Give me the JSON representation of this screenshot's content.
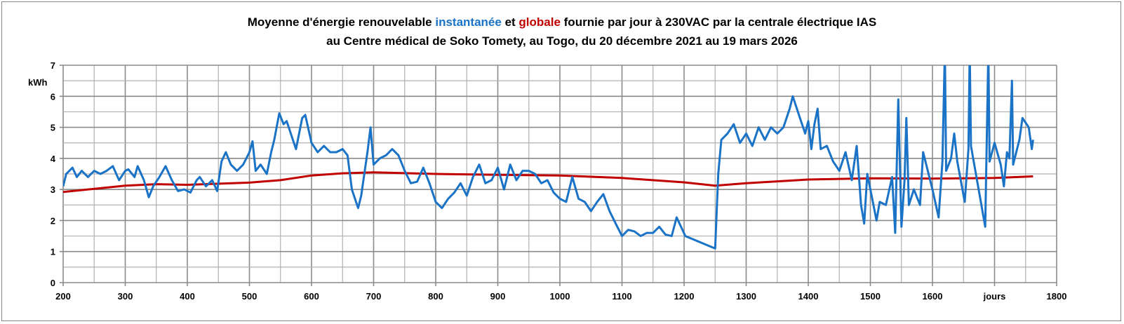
{
  "chart_data": {
    "type": "line",
    "title_parts": {
      "line1_a": "Moyenne d'énergie renouvelable ",
      "line1_b": "instantanée",
      "line1_c": " et ",
      "line1_d": "globale",
      "line1_e": " fournie par jour à 230VAC par la centrale électrique IAS",
      "line2": "au Centre médical de Soko Tomety, au Togo, du 20 décembre 2021 au 19 mars 2026"
    },
    "xlabel": "jours",
    "ylabel": "kWh",
    "xlim": [
      200,
      1800
    ],
    "ylim": [
      0,
      7
    ],
    "x_ticks": [
      "200",
      "300",
      "400",
      "500",
      "600",
      "700",
      "800",
      "900",
      "1000",
      "1100",
      "1200",
      "1300",
      "1400",
      "1500",
      "1600",
      "jours",
      "1800"
    ],
    "y_ticks": [
      "0",
      "1",
      "2",
      "3",
      "4",
      "5",
      "6",
      "7"
    ],
    "grid": true,
    "colors": {
      "instantanee": "#1a73c6",
      "globale": "#c00000"
    },
    "series": [
      {
        "name": "instantanée",
        "points": [
          [
            200,
            3.1
          ],
          [
            205,
            3.5
          ],
          [
            215,
            3.7
          ],
          [
            222,
            3.4
          ],
          [
            230,
            3.6
          ],
          [
            240,
            3.4
          ],
          [
            250,
            3.6
          ],
          [
            260,
            3.5
          ],
          [
            270,
            3.6
          ],
          [
            280,
            3.75
          ],
          [
            290,
            3.3
          ],
          [
            300,
            3.6
          ],
          [
            305,
            3.65
          ],
          [
            315,
            3.4
          ],
          [
            320,
            3.75
          ],
          [
            330,
            3.3
          ],
          [
            338,
            2.75
          ],
          [
            345,
            3.1
          ],
          [
            355,
            3.4
          ],
          [
            365,
            3.75
          ],
          [
            375,
            3.3
          ],
          [
            385,
            2.95
          ],
          [
            395,
            3.0
          ],
          [
            405,
            2.9
          ],
          [
            415,
            3.3
          ],
          [
            420,
            3.4
          ],
          [
            430,
            3.1
          ],
          [
            440,
            3.3
          ],
          [
            448,
            2.95
          ],
          [
            455,
            3.9
          ],
          [
            462,
            4.2
          ],
          [
            470,
            3.8
          ],
          [
            480,
            3.6
          ],
          [
            490,
            3.8
          ],
          [
            500,
            4.2
          ],
          [
            505,
            4.55
          ],
          [
            510,
            3.6
          ],
          [
            518,
            3.8
          ],
          [
            528,
            3.5
          ],
          [
            535,
            4.2
          ],
          [
            540,
            4.6
          ],
          [
            548,
            5.45
          ],
          [
            555,
            5.1
          ],
          [
            560,
            5.2
          ],
          [
            570,
            4.6
          ],
          [
            575,
            4.3
          ],
          [
            585,
            5.3
          ],
          [
            590,
            5.4
          ],
          [
            600,
            4.5
          ],
          [
            610,
            4.2
          ],
          [
            620,
            4.4
          ],
          [
            630,
            4.2
          ],
          [
            640,
            4.2
          ],
          [
            650,
            4.3
          ],
          [
            658,
            4.1
          ],
          [
            665,
            3.0
          ],
          [
            675,
            2.4
          ],
          [
            680,
            2.8
          ],
          [
            690,
            4.2
          ],
          [
            695,
            5.0
          ],
          [
            700,
            3.8
          ],
          [
            710,
            4.0
          ],
          [
            720,
            4.1
          ],
          [
            730,
            4.3
          ],
          [
            740,
            4.1
          ],
          [
            750,
            3.6
          ],
          [
            760,
            3.2
          ],
          [
            770,
            3.25
          ],
          [
            780,
            3.7
          ],
          [
            790,
            3.2
          ],
          [
            800,
            2.6
          ],
          [
            810,
            2.4
          ],
          [
            820,
            2.7
          ],
          [
            830,
            2.9
          ],
          [
            840,
            3.2
          ],
          [
            850,
            2.8
          ],
          [
            860,
            3.4
          ],
          [
            870,
            3.8
          ],
          [
            880,
            3.2
          ],
          [
            890,
            3.3
          ],
          [
            900,
            3.7
          ],
          [
            910,
            3.0
          ],
          [
            920,
            3.8
          ],
          [
            930,
            3.3
          ],
          [
            940,
            3.6
          ],
          [
            950,
            3.6
          ],
          [
            960,
            3.5
          ],
          [
            970,
            3.2
          ],
          [
            980,
            3.3
          ],
          [
            990,
            2.9
          ],
          [
            1000,
            2.7
          ],
          [
            1010,
            2.6
          ],
          [
            1020,
            3.4
          ],
          [
            1030,
            2.7
          ],
          [
            1040,
            2.6
          ],
          [
            1050,
            2.3
          ],
          [
            1060,
            2.6
          ],
          [
            1070,
            2.85
          ],
          [
            1080,
            2.3
          ],
          [
            1090,
            1.9
          ],
          [
            1100,
            1.5
          ],
          [
            1110,
            1.7
          ],
          [
            1120,
            1.65
          ],
          [
            1130,
            1.5
          ],
          [
            1140,
            1.6
          ],
          [
            1150,
            1.6
          ],
          [
            1160,
            1.8
          ],
          [
            1170,
            1.55
          ],
          [
            1180,
            1.5
          ],
          [
            1188,
            2.1
          ],
          [
            1195,
            1.8
          ],
          [
            1202,
            1.5
          ],
          [
            1250,
            1.1
          ],
          [
            1255,
            3.5
          ],
          [
            1260,
            4.6
          ],
          [
            1270,
            4.8
          ],
          [
            1280,
            5.1
          ],
          [
            1290,
            4.5
          ],
          [
            1300,
            4.8
          ],
          [
            1310,
            4.4
          ],
          [
            1320,
            5.0
          ],
          [
            1330,
            4.6
          ],
          [
            1340,
            5.0
          ],
          [
            1350,
            4.8
          ],
          [
            1360,
            5.0
          ],
          [
            1370,
            5.6
          ],
          [
            1375,
            6.0
          ],
          [
            1385,
            5.4
          ],
          [
            1395,
            4.8
          ],
          [
            1400,
            5.2
          ],
          [
            1405,
            4.3
          ],
          [
            1410,
            5.1
          ],
          [
            1415,
            5.6
          ],
          [
            1420,
            4.3
          ],
          [
            1430,
            4.4
          ],
          [
            1440,
            3.9
          ],
          [
            1450,
            3.6
          ],
          [
            1460,
            4.2
          ],
          [
            1470,
            3.3
          ],
          [
            1478,
            4.4
          ],
          [
            1485,
            2.5
          ],
          [
            1490,
            1.9
          ],
          [
            1495,
            3.5
          ],
          [
            1505,
            2.5
          ],
          [
            1510,
            2.0
          ],
          [
            1515,
            2.6
          ],
          [
            1525,
            2.5
          ],
          [
            1535,
            3.4
          ],
          [
            1540,
            1.6
          ],
          [
            1545,
            5.9
          ],
          [
            1550,
            1.8
          ],
          [
            1555,
            3.3
          ],
          [
            1558,
            5.3
          ],
          [
            1562,
            2.5
          ],
          [
            1570,
            3.0
          ],
          [
            1580,
            2.5
          ],
          [
            1585,
            4.2
          ],
          [
            1600,
            3.0
          ],
          [
            1610,
            2.1
          ],
          [
            1616,
            3.9
          ],
          [
            1620,
            7.5
          ],
          [
            1622,
            3.6
          ],
          [
            1630,
            4.0
          ],
          [
            1635,
            4.8
          ],
          [
            1640,
            3.9
          ],
          [
            1652,
            2.6
          ],
          [
            1658,
            4.3
          ],
          [
            1660,
            7.5
          ],
          [
            1662,
            4.4
          ],
          [
            1685,
            1.8
          ],
          [
            1690,
            7.5
          ],
          [
            1692,
            3.9
          ],
          [
            1700,
            4.5
          ],
          [
            1710,
            3.8
          ],
          [
            1715,
            3.1
          ],
          [
            1720,
            4.2
          ],
          [
            1724,
            4.0
          ],
          [
            1728,
            6.5
          ],
          [
            1730,
            3.8
          ],
          [
            1740,
            4.6
          ],
          [
            1745,
            5.3
          ],
          [
            1755,
            5.0
          ],
          [
            1760,
            4.3
          ],
          [
            1762,
            4.6
          ]
        ]
      },
      {
        "name": "globale",
        "points": [
          [
            200,
            2.92
          ],
          [
            300,
            3.12
          ],
          [
            350,
            3.17
          ],
          [
            400,
            3.15
          ],
          [
            500,
            3.22
          ],
          [
            550,
            3.3
          ],
          [
            600,
            3.45
          ],
          [
            650,
            3.52
          ],
          [
            700,
            3.55
          ],
          [
            800,
            3.5
          ],
          [
            900,
            3.47
          ],
          [
            1000,
            3.45
          ],
          [
            1100,
            3.37
          ],
          [
            1200,
            3.23
          ],
          [
            1250,
            3.12
          ],
          [
            1300,
            3.2
          ],
          [
            1400,
            3.32
          ],
          [
            1500,
            3.36
          ],
          [
            1600,
            3.35
          ],
          [
            1700,
            3.37
          ],
          [
            1762,
            3.42
          ]
        ]
      }
    ]
  }
}
